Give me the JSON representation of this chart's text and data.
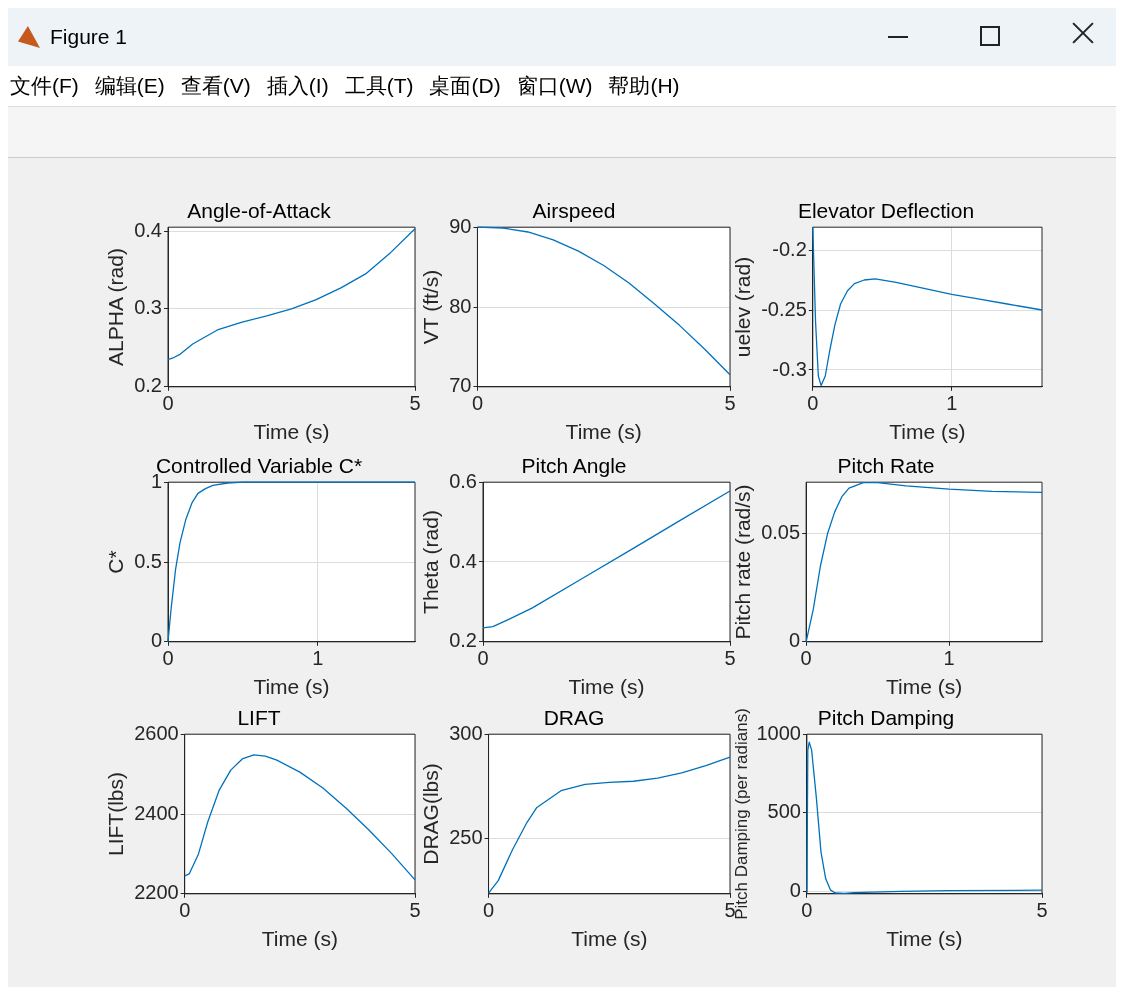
{
  "chart_data": [
    {
      "type": "other",
      "title": "Figure 1",
      "annotations": [
        "文件(F)",
        "编辑(E)",
        "查看(V)",
        "插入(I)",
        "工具(T)",
        "桌面(D)",
        "窗口(W)",
        "帮助(H)"
      ]
    },
    {
      "type": "line",
      "title": "Angle-of-Attack",
      "xlabel": "Time (s)",
      "ylabel": "ALPHA (rad)",
      "x": [
        0,
        0.1,
        0.25,
        0.5,
        1,
        1.5,
        2,
        2.5,
        3,
        3.5,
        4,
        4.5,
        5
      ],
      "values": [
        0.235,
        0.237,
        0.242,
        0.255,
        0.273,
        0.283,
        0.291,
        0.3,
        0.312,
        0.327,
        0.345,
        0.372,
        0.403
      ],
      "color": "#0072bd",
      "xlim": [
        0,
        5
      ],
      "xticks": [
        0,
        5
      ],
      "ylim": [
        0.2,
        0.405
      ],
      "yticks": [
        0.2,
        0.3,
        0.4
      ],
      "grid": true,
      "marker": "none"
    },
    {
      "type": "line",
      "title": "Airspeed",
      "xlabel": "Time (s)",
      "ylabel": "VT (ft/s)",
      "x": [
        0,
        0.5,
        1,
        1.5,
        2,
        2.5,
        3,
        3.5,
        4,
        4.5,
        5
      ],
      "values": [
        90,
        89.9,
        89.4,
        88.4,
        87,
        85.2,
        83,
        80.4,
        77.7,
        74.7,
        71.5
      ],
      "color": "#0072bd",
      "xlim": [
        0,
        5
      ],
      "xticks": [
        0,
        5
      ],
      "ylim": [
        70,
        90
      ],
      "yticks": [
        70,
        80,
        90
      ],
      "grid": true,
      "marker": "none"
    },
    {
      "type": "line",
      "title": "Elevator Deflection",
      "xlabel": "Time (s)",
      "ylabel": "uelev (rad)",
      "x": [
        0,
        0.02,
        0.04,
        0.06,
        0.09,
        0.12,
        0.16,
        0.2,
        0.25,
        0.3,
        0.37,
        0.45,
        0.6,
        0.8,
        1,
        1.2,
        1.4,
        1.65
      ],
      "values": [
        -0.181,
        -0.26,
        -0.305,
        -0.313,
        -0.305,
        -0.285,
        -0.262,
        -0.245,
        -0.234,
        -0.228,
        -0.225,
        -0.224,
        -0.227,
        -0.232,
        -0.237,
        -0.241,
        -0.245,
        -0.25
      ],
      "color": "#0072bd",
      "xlim": [
        0,
        1.65
      ],
      "xticks": [
        0,
        1
      ],
      "ylim": [
        -0.314,
        -0.181
      ],
      "yticks": [
        -0.3,
        -0.25,
        -0.2
      ],
      "grid": true,
      "marker": "none"
    },
    {
      "type": "line",
      "title": "Controlled Variable C*",
      "xlabel": "Time (s)",
      "ylabel": "C*",
      "x": [
        0,
        0.02,
        0.05,
        0.08,
        0.12,
        0.16,
        0.2,
        0.25,
        0.3,
        0.4,
        0.5,
        1,
        1.65
      ],
      "values": [
        0,
        0.2,
        0.45,
        0.62,
        0.77,
        0.87,
        0.93,
        0.96,
        0.98,
        0.995,
        1,
        1,
        1
      ],
      "color": "#0072bd",
      "xlim": [
        0,
        1.65
      ],
      "xticks": [
        0,
        1
      ],
      "ylim": [
        0,
        1
      ],
      "yticks": [
        0,
        0.5,
        1
      ],
      "grid": true,
      "marker": "none"
    },
    {
      "type": "line",
      "title": "Pitch Angle",
      "xlabel": "Time (s)",
      "ylabel": "Theta (rad)",
      "x": [
        0,
        0.2,
        0.5,
        1,
        2,
        3,
        4,
        5
      ],
      "values": [
        0.235,
        0.238,
        0.255,
        0.285,
        0.358,
        0.431,
        0.505,
        0.578
      ],
      "color": "#0072bd",
      "xlim": [
        0,
        5
      ],
      "xticks": [
        0,
        5
      ],
      "ylim": [
        0.2,
        0.6
      ],
      "yticks": [
        0.2,
        0.4,
        0.6
      ],
      "grid": true,
      "marker": "none"
    },
    {
      "type": "line",
      "title": "Pitch Rate",
      "xlabel": "Time (s)",
      "ylabel": "Pitch rate (rad/s)",
      "x": [
        0,
        0.05,
        0.1,
        0.15,
        0.2,
        0.25,
        0.3,
        0.4,
        0.5,
        0.7,
        1,
        1.3,
        1.65
      ],
      "values": [
        0,
        0.015,
        0.035,
        0.05,
        0.06,
        0.067,
        0.071,
        0.0735,
        0.0735,
        0.072,
        0.0705,
        0.0695,
        0.069
      ],
      "color": "#0072bd",
      "xlim": [
        0,
        1.65
      ],
      "xticks": [
        0,
        1
      ],
      "ylim": [
        0,
        0.0737
      ],
      "yticks": [
        0,
        0.05
      ],
      "grid": true,
      "marker": "none"
    },
    {
      "type": "line",
      "title": "LIFT",
      "xlabel": "Time (s)",
      "ylabel": "LIFT(lbs)",
      "x": [
        0,
        0.1,
        0.3,
        0.5,
        0.75,
        1,
        1.25,
        1.5,
        1.75,
        2,
        2.5,
        3,
        3.5,
        4,
        4.5,
        5
      ],
      "values": [
        2245,
        2250,
        2300,
        2380,
        2460,
        2510,
        2538,
        2548,
        2545,
        2535,
        2505,
        2465,
        2415,
        2360,
        2300,
        2235
      ],
      "color": "#0072bd",
      "xlim": [
        0,
        5
      ],
      "xticks": [
        0,
        5
      ],
      "ylim": [
        2200,
        2600
      ],
      "yticks": [
        2200,
        2400,
        2600
      ],
      "grid": true,
      "marker": "none"
    },
    {
      "type": "line",
      "title": "DRAG",
      "xlabel": "Time (s)",
      "ylabel": "DRAG(lbs)",
      "x": [
        0,
        0.2,
        0.5,
        0.8,
        1,
        1.5,
        2,
        2.5,
        3,
        3.5,
        4,
        4.5,
        5
      ],
      "values": [
        224,
        230,
        245,
        258,
        265,
        273,
        276,
        277,
        277.5,
        279,
        281.5,
        285,
        289
      ],
      "color": "#0072bd",
      "xlim": [
        0,
        5
      ],
      "xticks": [
        0,
        5
      ],
      "ylim": [
        223.7,
        300
      ],
      "yticks": [
        250,
        300
      ],
      "grid": true,
      "marker": "none"
    },
    {
      "type": "line",
      "title": "Pitch Damping",
      "xlabel": "Time (s)",
      "ylabel": "Pitch Damping (per radians)",
      "x": [
        0,
        0.02,
        0.05,
        0.1,
        0.2,
        0.3,
        0.4,
        0.5,
        0.6,
        0.8,
        1,
        2,
        3,
        5
      ],
      "values": [
        0,
        900,
        950,
        900,
        600,
        250,
        80,
        10,
        -10,
        -12,
        -8,
        0,
        5,
        8
      ],
      "color": "#0072bd",
      "xlim": [
        0,
        5
      ],
      "xticks": [
        0,
        5
      ],
      "ylim": [
        -15,
        1000
      ],
      "yticks": [
        0,
        500,
        1000
      ],
      "grid": true,
      "marker": "none"
    }
  ]
}
